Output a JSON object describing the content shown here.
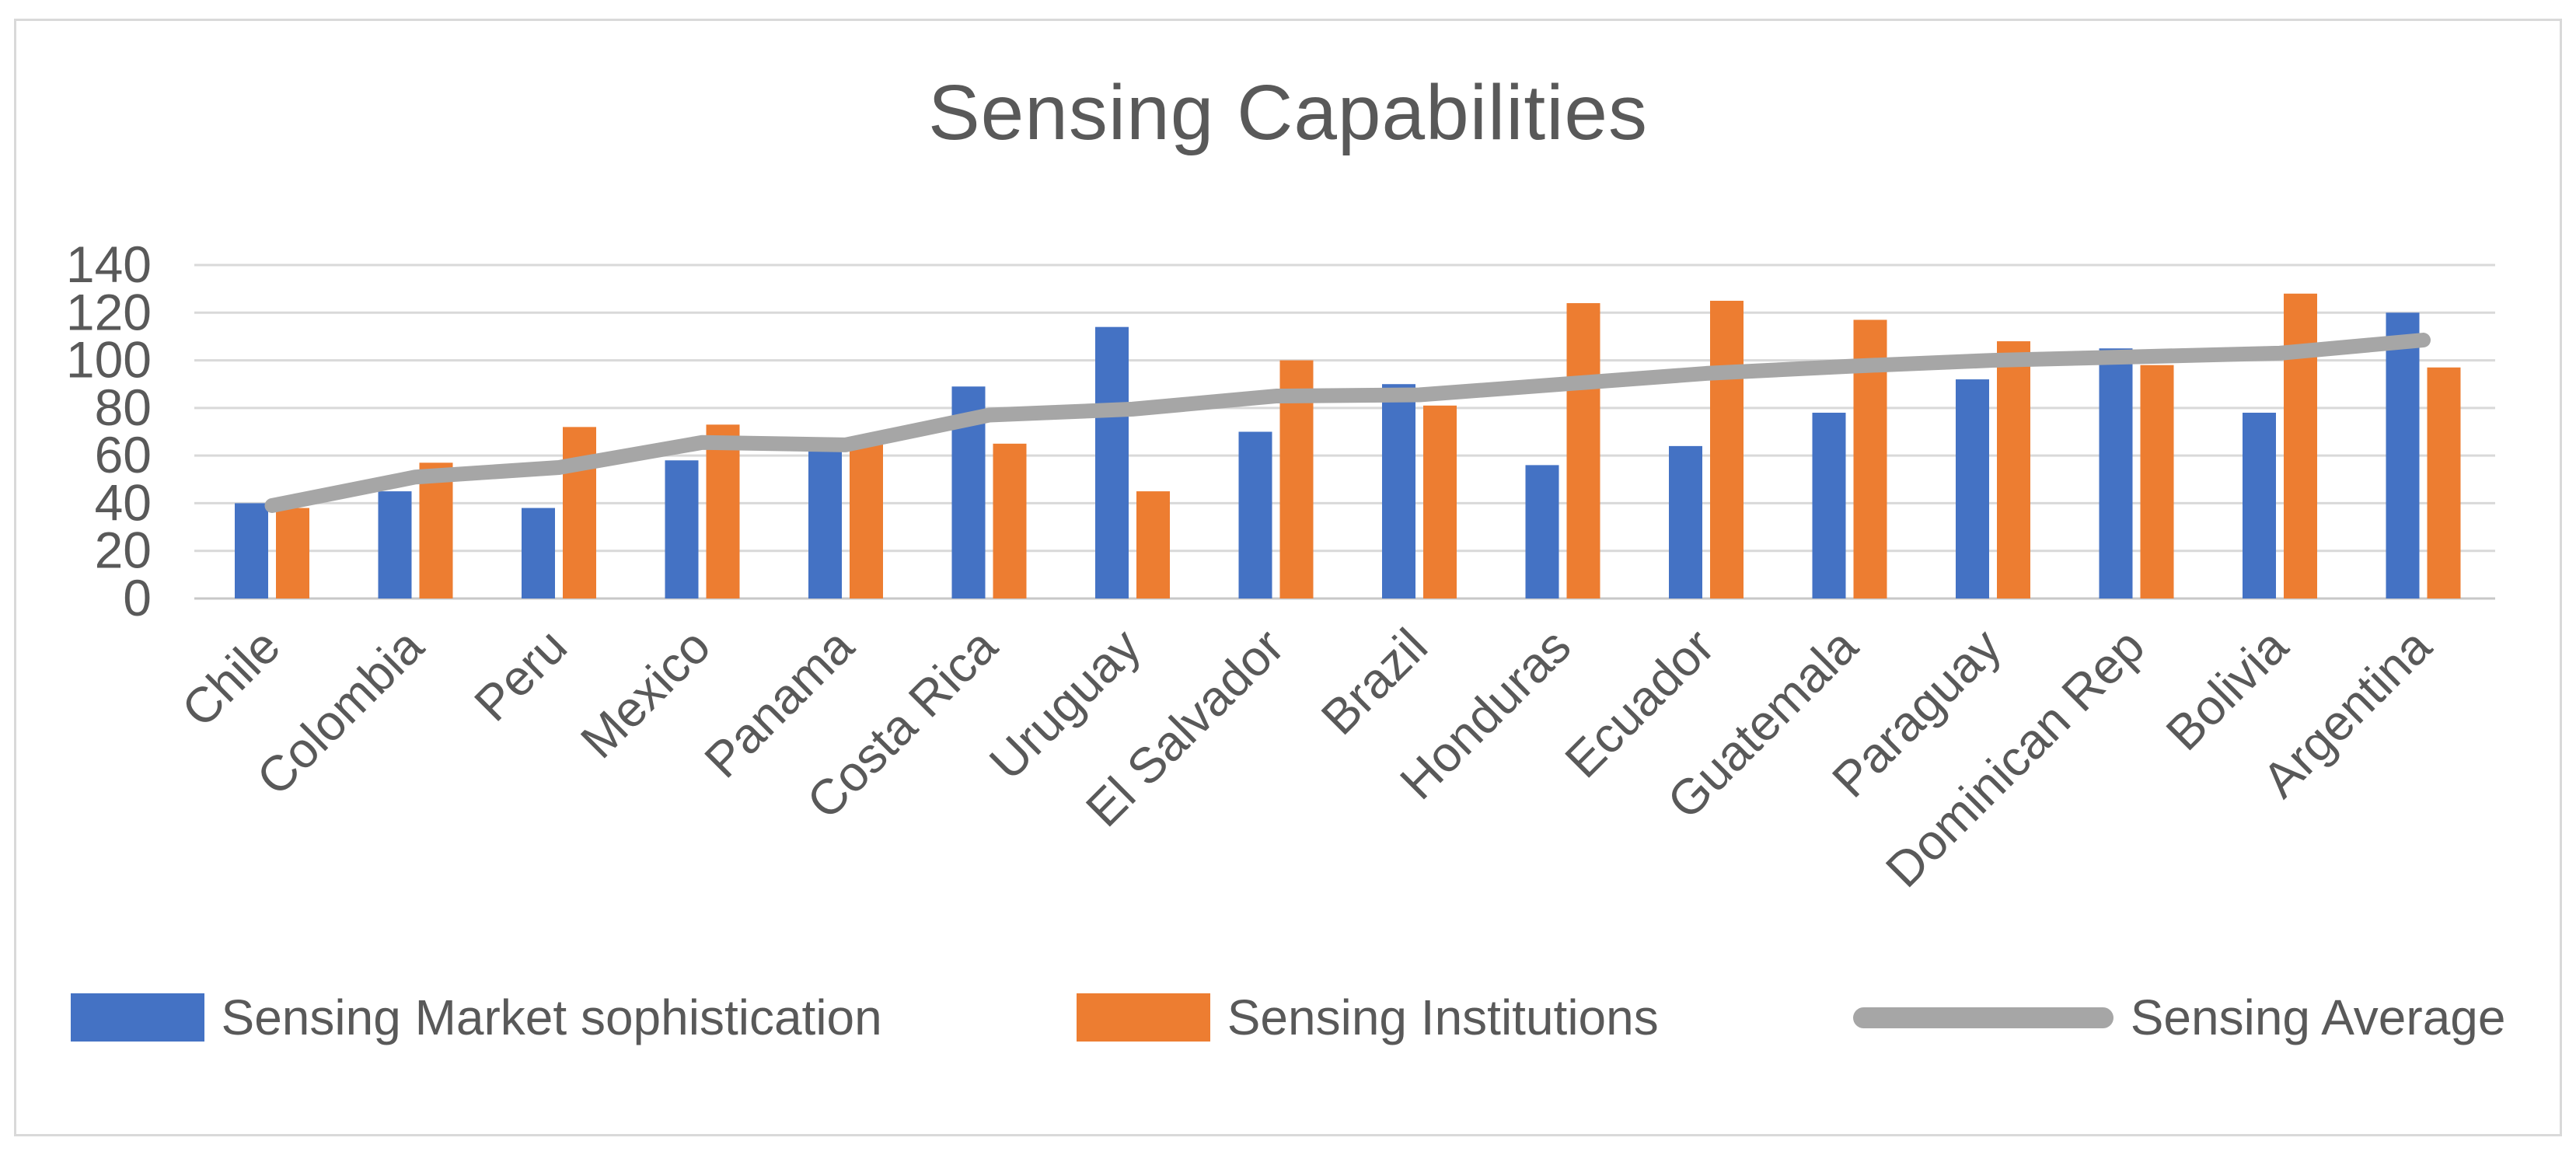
{
  "chart_data": {
    "type": "combo-bar-line",
    "title": "Sensing Capabilities",
    "categories": [
      "Chile",
      "Colombia",
      "Peru",
      "Mexico",
      "Panama",
      "Costa Rica",
      "Uruguay",
      "El Salvador",
      "Brazil",
      "Honduras",
      "Ecuador",
      "Guatemala",
      "Paraguay",
      "Dominican Rep",
      "Bolivia",
      "Argentina"
    ],
    "series": [
      {
        "name": "Sensing Market sophistication",
        "type": "bar",
        "color": "#4472C4",
        "values": [
          40,
          45,
          38,
          58,
          63,
          89,
          114,
          70,
          90,
          56,
          64,
          78,
          92,
          105,
          78,
          120
        ]
      },
      {
        "name": "Sensing Institutions",
        "type": "bar",
        "color": "#ED7D31",
        "values": [
          38,
          57,
          72,
          73,
          66,
          65,
          45,
          100,
          81,
          124,
          125,
          117,
          108,
          98,
          128,
          97
        ]
      },
      {
        "name": "Sensing Average",
        "type": "line",
        "color": "#A6A6A6",
        "values": [
          39,
          51,
          55,
          65.5,
          64.5,
          77,
          79.5,
          85,
          85.5,
          90,
          94.5,
          97.5,
          100,
          101.5,
          103,
          108.5
        ]
      }
    ],
    "y_axis": {
      "min": 0,
      "max": 140,
      "step": 20,
      "tick_labels": [
        "140",
        "120",
        "100",
        "80",
        "60",
        "40",
        "20",
        "0"
      ]
    },
    "grid": true,
    "legend_position": "bottom",
    "styles": {
      "title_color": "#595959",
      "axis_label_color": "#595959",
      "gridline_color": "#D9D9D9",
      "axis_line_color": "#C8C8C8",
      "plot_background": "#FFFFFF",
      "border_color": "#D9D9D9"
    }
  }
}
